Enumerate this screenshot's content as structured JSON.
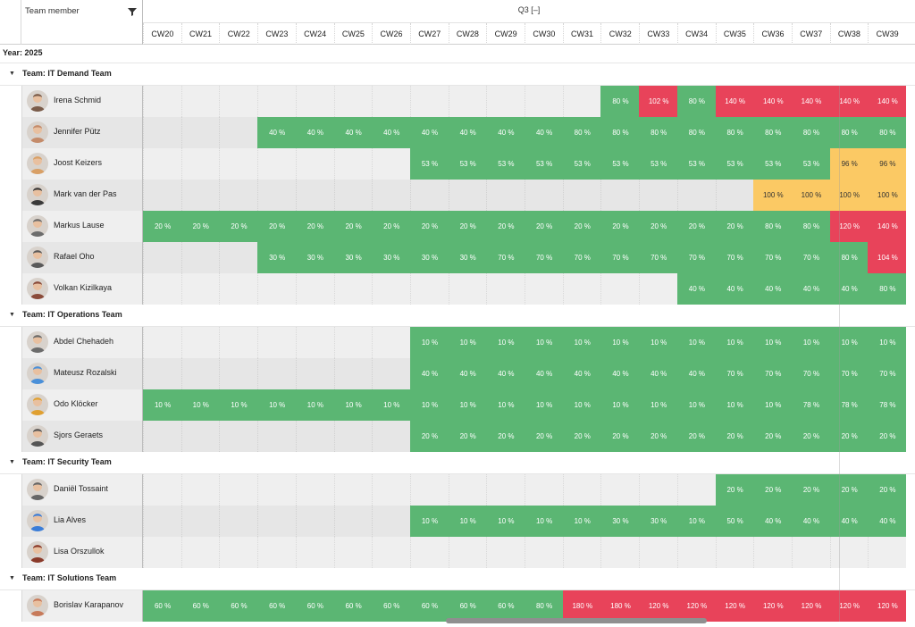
{
  "header": {
    "column_title": "Team member",
    "quarter_label": "Q3 [–]",
    "weeks": [
      "CW20",
      "CW21",
      "CW22",
      "CW23",
      "CW24",
      "CW25",
      "CW26",
      "CW27",
      "CW28",
      "CW29",
      "CW30",
      "CW31",
      "CW32",
      "CW33",
      "CW34",
      "CW35",
      "CW36",
      "CW37",
      "CW38",
      "CW39"
    ]
  },
  "year_label": "Year: 2025",
  "colors": {
    "green": "#5bb673",
    "red": "#e8435a",
    "orange": "#fbc964",
    "empty": "#efefef"
  },
  "teams": [
    {
      "label": "Team: IT Demand Team",
      "members": [
        {
          "name": "Irena Schmid",
          "cells": [
            "",
            "",
            "",
            "",
            "",
            "",
            "",
            "",
            "",
            "",
            "",
            "",
            "80 %",
            "102 %",
            "80 %",
            "140 %",
            "140 %",
            "140 %",
            "140 %",
            "140 %"
          ]
        },
        {
          "name": "Jennifer Pütz",
          "cells": [
            "",
            "",
            "",
            "40 %",
            "40 %",
            "40 %",
            "40 %",
            "40 %",
            "40 %",
            "40 %",
            "40 %",
            "80 %",
            "80 %",
            "80 %",
            "80 %",
            "80 %",
            "80 %",
            "80 %",
            "80 %",
            "80 %"
          ]
        },
        {
          "name": "Joost Keizers",
          "cells": [
            "",
            "",
            "",
            "",
            "",
            "",
            "",
            "53 %",
            "53 %",
            "53 %",
            "53 %",
            "53 %",
            "53 %",
            "53 %",
            "53 %",
            "53 %",
            "53 %",
            "53 %",
            "96 %",
            "96 %"
          ]
        },
        {
          "name": "Mark van der Pas",
          "cells": [
            "",
            "",
            "",
            "",
            "",
            "",
            "",
            "",
            "",
            "",
            "",
            "",
            "",
            "",
            "",
            "",
            "100 %",
            "100 %",
            "100 %",
            "100 %"
          ]
        },
        {
          "name": "Markus Lause",
          "cells": [
            "20 %",
            "20 %",
            "20 %",
            "20 %",
            "20 %",
            "20 %",
            "20 %",
            "20 %",
            "20 %",
            "20 %",
            "20 %",
            "20 %",
            "20 %",
            "20 %",
            "20 %",
            "20 %",
            "80 %",
            "80 %",
            "120 %",
            "140 %"
          ]
        },
        {
          "name": "Rafael Oho",
          "cells": [
            "",
            "",
            "",
            "30 %",
            "30 %",
            "30 %",
            "30 %",
            "30 %",
            "30 %",
            "70 %",
            "70 %",
            "70 %",
            "70 %",
            "70 %",
            "70 %",
            "70 %",
            "70 %",
            "70 %",
            "80 %",
            "104 %"
          ]
        },
        {
          "name": "Volkan Kizilkaya",
          "cells": [
            "",
            "",
            "",
            "",
            "",
            "",
            "",
            "",
            "",
            "",
            "",
            "",
            "",
            "",
            "40 %",
            "40 %",
            "40 %",
            "40 %",
            "40 %",
            "80 %"
          ]
        }
      ]
    },
    {
      "label": "Team: IT Operations Team",
      "members": [
        {
          "name": "Abdel Chehadeh",
          "cells": [
            "",
            "",
            "",
            "",
            "",
            "",
            "",
            "10 %",
            "10 %",
            "10 %",
            "10 %",
            "10 %",
            "10 %",
            "10 %",
            "10 %",
            "10 %",
            "10 %",
            "10 %",
            "10 %",
            "10 %"
          ]
        },
        {
          "name": "Mateusz Rozalski",
          "cells": [
            "",
            "",
            "",
            "",
            "",
            "",
            "",
            "40 %",
            "40 %",
            "40 %",
            "40 %",
            "40 %",
            "40 %",
            "40 %",
            "40 %",
            "70 %",
            "70 %",
            "70 %",
            "70 %",
            "70 %"
          ]
        },
        {
          "name": "Odo Klöcker",
          "cells": [
            "10 %",
            "10 %",
            "10 %",
            "10 %",
            "10 %",
            "10 %",
            "10 %",
            "10 %",
            "10 %",
            "10 %",
            "10 %",
            "10 %",
            "10 %",
            "10 %",
            "10 %",
            "10 %",
            "10 %",
            "78 %",
            "78 %",
            "78 %"
          ]
        },
        {
          "name": "Sjors Geraets",
          "cells": [
            "",
            "",
            "",
            "",
            "",
            "",
            "",
            "20 %",
            "20 %",
            "20 %",
            "20 %",
            "20 %",
            "20 %",
            "20 %",
            "20 %",
            "20 %",
            "20 %",
            "20 %",
            "20 %",
            "20 %"
          ]
        }
      ]
    },
    {
      "label": "Team: IT Security Team",
      "members": [
        {
          "name": "Daniël Tossaint",
          "cells": [
            "",
            "",
            "",
            "",
            "",
            "",
            "",
            "",
            "",
            "",
            "",
            "",
            "",
            "",
            "",
            "20 %",
            "20 %",
            "20 %",
            "20 %",
            "20 %"
          ]
        },
        {
          "name": "Lia Alves",
          "cells": [
            "",
            "",
            "",
            "",
            "",
            "",
            "",
            "10 %",
            "10 %",
            "10 %",
            "10 %",
            "10 %",
            "30 %",
            "30 %",
            "10 %",
            "50 %",
            "40 %",
            "40 %",
            "40 %",
            "40 %"
          ]
        },
        {
          "name": "Lisa Orszullok",
          "cells": [
            "",
            "",
            "",
            "",
            "",
            "",
            "",
            "",
            "",
            "",
            "",
            "",
            "",
            "",
            "",
            "",
            "",
            "",
            "",
            ""
          ]
        }
      ]
    },
    {
      "label": "Team: IT Solutions Team",
      "members": [
        {
          "name": "Borislav Karapanov",
          "cells": [
            "60 %",
            "60 %",
            "60 %",
            "60 %",
            "60 %",
            "60 %",
            "60 %",
            "60 %",
            "60 %",
            "60 %",
            "80 %",
            "180 %",
            "180 %",
            "120 %",
            "120 %",
            "120 %",
            "120 %",
            "120 %",
            "120 %",
            "120 %"
          ]
        }
      ]
    }
  ]
}
